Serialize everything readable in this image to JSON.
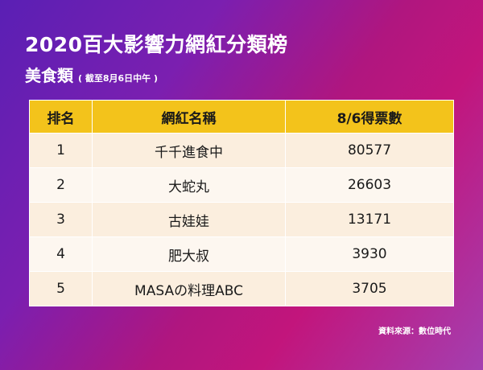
{
  "header": {
    "title": "2020百大影響力網紅分類榜",
    "subtitle": "美食類",
    "note": "( 截至8月6日中午 )"
  },
  "table": {
    "columns": [
      "排名",
      "網紅名稱",
      "8/6得票數"
    ],
    "rows": [
      {
        "rank": "1",
        "name": "千千進食中",
        "votes": "80577"
      },
      {
        "rank": "2",
        "name": "大蛇丸",
        "votes": "26603"
      },
      {
        "rank": "3",
        "name": "古娃娃",
        "votes": "13171"
      },
      {
        "rank": "4",
        "name": "肥大叔",
        "votes": "3930"
      },
      {
        "rank": "5",
        "name": "MASAの料理ABC",
        "votes": "3705"
      }
    ]
  },
  "footer": {
    "source": "資料來源：數位時代"
  },
  "colors": {
    "header_bg": "#f3c31b",
    "row_odd": "#fbeede",
    "row_even": "#fdf7f0"
  }
}
